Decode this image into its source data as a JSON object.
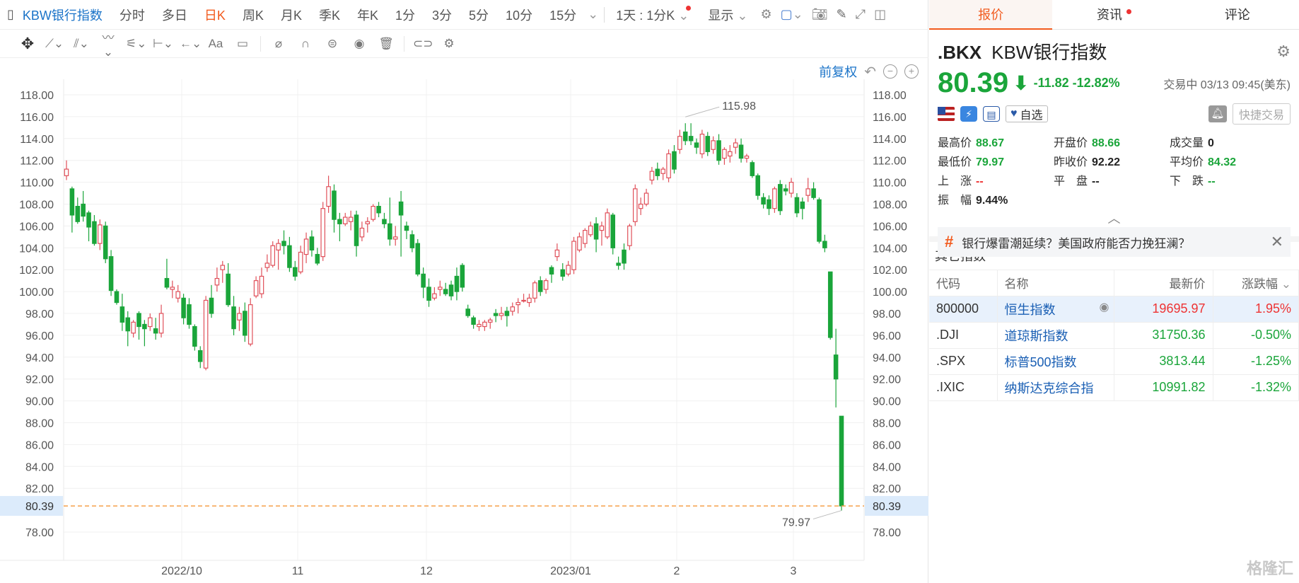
{
  "toolbar": {
    "title": "KBW银行指数",
    "periods": [
      "分时",
      "多日",
      "日K",
      "周K",
      "月K",
      "季K",
      "年K",
      "1分",
      "3分",
      "5分",
      "10分",
      "15分"
    ],
    "active_period": "日K",
    "interval_select": "1天 : 1分K",
    "display_label": "显示"
  },
  "drawing_tools": [
    "move-icon",
    "line-icon",
    "channel-icon",
    "wave-icon",
    "fib-icon",
    "measure-icon",
    "arrow-icon",
    "text-icon",
    "comment-icon",
    "eraser-icon",
    "magnet-icon",
    "lock-icon",
    "eye-icon",
    "trash-icon",
    "link-icon",
    "gear-icon"
  ],
  "chart": {
    "adjust_label": "前复权",
    "x_labels": [
      "2022/10",
      "11",
      "12",
      "2023/01",
      "2",
      "3"
    ],
    "y_labels": [
      "118.00",
      "116.00",
      "114.00",
      "112.00",
      "110.00",
      "108.00",
      "106.00",
      "104.00",
      "102.00",
      "100.00",
      "98.00",
      "96.00",
      "94.00",
      "92.00",
      "90.00",
      "88.00",
      "86.00",
      "84.00",
      "82.00",
      "80.39",
      "78.00"
    ],
    "high_label": "115.98",
    "low_label": "79.97",
    "current_label": "80.39",
    "up_color": "#e0505a",
    "down_color": "#1aa53a",
    "current_line_color": "#f5a04a"
  },
  "chart_data": {
    "type": "candlestick",
    "x_labels": [
      "2022/10",
      "11",
      "12",
      "2023/01",
      "2",
      "3"
    ],
    "ylim": [
      77,
      119
    ],
    "y_ticks": [
      78,
      80,
      82,
      84,
      86,
      88,
      90,
      92,
      94,
      96,
      98,
      100,
      102,
      104,
      106,
      108,
      110,
      112,
      114,
      116,
      118
    ],
    "current_price": 80.39,
    "annotated_high": 115.98,
    "annotated_low": 79.97,
    "candles_ohlc": [
      [
        110.6,
        112.0,
        110.2,
        111.2
      ],
      [
        109.4,
        109.6,
        105.4,
        107.0
      ],
      [
        107.8,
        108.6,
        106.2,
        106.4
      ],
      [
        108.0,
        109.2,
        106.4,
        106.9
      ],
      [
        107.2,
        107.4,
        104.6,
        105.9
      ],
      [
        106.4,
        107.0,
        104.2,
        104.4
      ],
      [
        104.4,
        106.6,
        103.8,
        106.1
      ],
      [
        106.0,
        106.4,
        102.6,
        103.0
      ],
      [
        103.2,
        103.8,
        99.6,
        100.1
      ],
      [
        100.0,
        100.2,
        98.8,
        99.0
      ],
      [
        98.6,
        99.8,
        96.4,
        97.2
      ],
      [
        97.6,
        98.2,
        95.0,
        96.4
      ],
      [
        96.2,
        97.4,
        95.8,
        97.2
      ],
      [
        98.0,
        98.2,
        95.6,
        96.8
      ],
      [
        97.0,
        97.4,
        95.0,
        96.6
      ],
      [
        96.8,
        98.0,
        96.4,
        97.6
      ],
      [
        96.6,
        97.6,
        95.6,
        96.2
      ],
      [
        96.2,
        98.8,
        95.8,
        98.0
      ],
      [
        101.2,
        103.0,
        100.2,
        100.4
      ],
      [
        100.2,
        101.0,
        99.4,
        100.4
      ],
      [
        99.4,
        100.6,
        99.0,
        100.0
      ],
      [
        99.4,
        99.8,
        97.0,
        97.6
      ],
      [
        98.8,
        99.4,
        96.6,
        97.0
      ],
      [
        96.8,
        97.0,
        94.6,
        95.0
      ],
      [
        94.6,
        95.0,
        93.0,
        93.6
      ],
      [
        93.0,
        99.6,
        92.8,
        99.2
      ],
      [
        99.4,
        100.6,
        97.6,
        98.0
      ],
      [
        100.6,
        102.2,
        100.0,
        101.2
      ],
      [
        102.0,
        102.8,
        100.8,
        102.4
      ],
      [
        101.6,
        102.6,
        98.6,
        98.8
      ],
      [
        98.6,
        99.6,
        96.0,
        96.6
      ],
      [
        97.4,
        98.6,
        96.4,
        98.0
      ],
      [
        98.2,
        99.0,
        95.4,
        96.0
      ],
      [
        95.2,
        99.4,
        95.0,
        98.8
      ],
      [
        99.6,
        101.4,
        99.4,
        101.0
      ],
      [
        99.8,
        102.2,
        99.4,
        101.4
      ],
      [
        102.2,
        103.4,
        101.8,
        102.6
      ],
      [
        102.4,
        104.6,
        102.2,
        104.2
      ],
      [
        103.8,
        104.8,
        102.0,
        104.4
      ],
      [
        104.6,
        105.6,
        103.4,
        104.2
      ],
      [
        104.2,
        105.0,
        101.8,
        102.2
      ],
      [
        102.2,
        102.8,
        101.0,
        101.4
      ],
      [
        101.8,
        104.2,
        101.6,
        103.6
      ],
      [
        103.4,
        105.4,
        102.6,
        104.8
      ],
      [
        105.0,
        105.6,
        103.2,
        103.8
      ],
      [
        103.4,
        104.0,
        102.4,
        102.6
      ],
      [
        103.2,
        108.2,
        102.8,
        107.6
      ],
      [
        107.8,
        110.6,
        107.2,
        109.6
      ],
      [
        109.2,
        109.8,
        105.4,
        106.6
      ],
      [
        106.6,
        107.2,
        104.6,
        106.2
      ],
      [
        106.2,
        107.2,
        106.0,
        106.8
      ],
      [
        106.4,
        107.4,
        105.6,
        106.8
      ],
      [
        107.0,
        107.4,
        103.2,
        104.2
      ],
      [
        105.0,
        106.4,
        104.6,
        105.8
      ],
      [
        106.2,
        106.8,
        105.4,
        106.4
      ],
      [
        106.6,
        108.0,
        106.4,
        107.8
      ],
      [
        107.8,
        108.2,
        106.8,
        107.2
      ],
      [
        106.6,
        107.2,
        105.8,
        106.2
      ],
      [
        106.2,
        108.6,
        104.2,
        104.8
      ],
      [
        104.8,
        106.0,
        104.2,
        105.0
      ],
      [
        108.2,
        109.2,
        103.2,
        107.0
      ],
      [
        106.0,
        106.4,
        104.8,
        105.6
      ],
      [
        105.2,
        105.6,
        103.6,
        104.0
      ],
      [
        104.4,
        104.8,
        101.4,
        101.6
      ],
      [
        101.6,
        102.2,
        99.4,
        100.4
      ],
      [
        100.4,
        101.2,
        98.6,
        99.2
      ],
      [
        99.4,
        100.4,
        99.2,
        99.8
      ],
      [
        100.2,
        101.0,
        99.6,
        100.4
      ],
      [
        100.2,
        100.8,
        99.6,
        99.8
      ],
      [
        100.6,
        101.0,
        99.2,
        99.6
      ],
      [
        101.4,
        102.2,
        99.2,
        100.0
      ],
      [
        102.4,
        102.6,
        100.0,
        100.4
      ],
      [
        98.4,
        98.8,
        97.6,
        97.8
      ],
      [
        97.6,
        97.8,
        96.6,
        97.0
      ],
      [
        96.8,
        97.4,
        96.4,
        97.0
      ],
      [
        96.8,
        97.4,
        96.4,
        97.2
      ],
      [
        97.2,
        97.6,
        96.6,
        97.4
      ],
      [
        98.0,
        98.4,
        97.2,
        97.8
      ],
      [
        97.8,
        98.6,
        97.4,
        98.0
      ],
      [
        98.2,
        98.6,
        96.8,
        97.8
      ],
      [
        98.2,
        99.0,
        97.8,
        98.6
      ],
      [
        98.8,
        99.4,
        98.0,
        99.0
      ],
      [
        99.2,
        99.8,
        99.0,
        99.2
      ],
      [
        99.0,
        99.8,
        98.6,
        99.4
      ],
      [
        99.4,
        101.0,
        99.0,
        100.8
      ],
      [
        101.0,
        101.4,
        99.6,
        100.0
      ],
      [
        100.2,
        101.2,
        99.8,
        101.0
      ],
      [
        102.2,
        102.4,
        100.8,
        101.6
      ],
      [
        103.2,
        104.4,
        102.8,
        103.8
      ],
      [
        102.0,
        102.6,
        101.0,
        101.4
      ],
      [
        101.6,
        102.8,
        101.4,
        102.4
      ],
      [
        102.0,
        105.0,
        101.6,
        104.6
      ],
      [
        103.8,
        105.4,
        103.6,
        105.0
      ],
      [
        104.4,
        105.8,
        104.0,
        105.6
      ],
      [
        105.2,
        106.4,
        105.0,
        106.0
      ],
      [
        106.2,
        106.8,
        103.6,
        104.8
      ],
      [
        105.6,
        106.4,
        104.2,
        106.0
      ],
      [
        105.0,
        107.6,
        104.8,
        107.2
      ],
      [
        107.0,
        107.2,
        103.4,
        104.0
      ],
      [
        102.6,
        103.2,
        102.0,
        102.4
      ],
      [
        103.8,
        104.4,
        102.0,
        102.6
      ],
      [
        104.2,
        106.2,
        103.8,
        106.0
      ],
      [
        106.4,
        109.8,
        106.0,
        109.4
      ],
      [
        107.6,
        108.6,
        107.0,
        108.0
      ],
      [
        108.0,
        109.4,
        107.8,
        109.0
      ],
      [
        110.2,
        111.4,
        109.8,
        111.0
      ],
      [
        111.2,
        111.8,
        110.2,
        110.6
      ],
      [
        110.8,
        111.4,
        110.2,
        111.2
      ],
      [
        110.4,
        113.0,
        110.0,
        112.6
      ],
      [
        112.8,
        113.4,
        110.8,
        111.2
      ],
      [
        113.0,
        114.8,
        112.6,
        114.2
      ],
      [
        114.6,
        115.4,
        113.4,
        113.8
      ],
      [
        114.2,
        115.4,
        113.4,
        113.8
      ],
      [
        113.6,
        114.0,
        112.6,
        113.2
      ],
      [
        112.6,
        114.8,
        112.2,
        114.4
      ],
      [
        114.2,
        114.6,
        112.4,
        112.8
      ],
      [
        113.0,
        114.2,
        112.6,
        113.8
      ],
      [
        113.8,
        114.4,
        111.6,
        112.0
      ],
      [
        112.2,
        113.2,
        111.6,
        113.0
      ],
      [
        112.4,
        113.4,
        111.8,
        112.8
      ],
      [
        113.2,
        114.0,
        112.6,
        113.6
      ],
      [
        113.4,
        114.0,
        111.8,
        112.2
      ],
      [
        112.2,
        112.6,
        111.8,
        112.4
      ],
      [
        111.8,
        112.0,
        110.4,
        110.6
      ],
      [
        110.6,
        110.8,
        108.4,
        108.8
      ],
      [
        108.6,
        109.0,
        107.6,
        108.0
      ],
      [
        108.4,
        108.8,
        107.0,
        107.6
      ],
      [
        107.6,
        109.6,
        107.2,
        109.4
      ],
      [
        109.8,
        110.2,
        107.0,
        107.4
      ],
      [
        109.4,
        109.8,
        108.8,
        109.2
      ],
      [
        109.0,
        110.4,
        108.6,
        110.0
      ],
      [
        108.6,
        109.0,
        106.8,
        107.2
      ],
      [
        108.2,
        108.6,
        106.6,
        107.6
      ],
      [
        108.8,
        110.4,
        108.2,
        109.4
      ],
      [
        109.4,
        110.0,
        108.4,
        108.6
      ],
      [
        108.4,
        108.6,
        104.4,
        104.6
      ],
      [
        104.6,
        105.2,
        103.6,
        104.0
      ],
      [
        101.8,
        101.8,
        95.6,
        95.8
      ],
      [
        94.2,
        96.6,
        89.4,
        92.0
      ],
      [
        88.6,
        88.6,
        79.97,
        80.39
      ]
    ]
  },
  "right": {
    "tabs": [
      {
        "label": "报价",
        "active": true
      },
      {
        "label": "资讯",
        "dot": true
      },
      {
        "label": "评论"
      }
    ],
    "code": ".BKX",
    "name": "KBW银行指数",
    "price": "80.39",
    "change": "-11.82",
    "change_pct": "-12.82%",
    "status": "交易中 03/13 09:45(美东)",
    "watch_label": "自选",
    "fast_trade": "快捷交易",
    "stats": [
      {
        "k": "最高价",
        "v": "88.67",
        "c": "green"
      },
      {
        "k": "开盘价",
        "v": "88.66",
        "c": "green"
      },
      {
        "k": "成交量",
        "v": "0",
        "c": "dark"
      },
      {
        "k": "最低价",
        "v": "79.97",
        "c": "green"
      },
      {
        "k": "昨收价",
        "v": "92.22",
        "c": "dark"
      },
      {
        "k": "平均价",
        "v": "84.32",
        "c": "green"
      },
      {
        "k": "上　涨",
        "v": "--",
        "c": "red"
      },
      {
        "k": "平　盘",
        "v": "--",
        "c": "dark"
      },
      {
        "k": "下　跌",
        "v": "--",
        "c": "green"
      },
      {
        "k": "振　幅",
        "v": "9.44%",
        "c": "dark"
      }
    ],
    "news": "银行爆雷潮延续？美国政府能否力挽狂澜？",
    "others_title": "其它指数",
    "table_headers": {
      "code": "代码",
      "name": "名称",
      "price": "最新价",
      "chg": "涨跌幅"
    },
    "indices": [
      {
        "code": "800000",
        "name": "恒生指数",
        "price": "19695.97",
        "chg": "1.95%",
        "dir": "red",
        "selected": true
      },
      {
        "code": ".DJI",
        "name": "道琼斯指数",
        "price": "31750.36",
        "chg": "-0.50%",
        "dir": "green"
      },
      {
        "code": ".SPX",
        "name": "标普500指数",
        "price": "3813.44",
        "chg": "-1.25%",
        "dir": "green"
      },
      {
        "code": ".IXIC",
        "name": "纳斯达克综合指",
        "price": "10991.82",
        "chg": "-1.32%",
        "dir": "green"
      }
    ],
    "watermark": "格隆汇"
  }
}
